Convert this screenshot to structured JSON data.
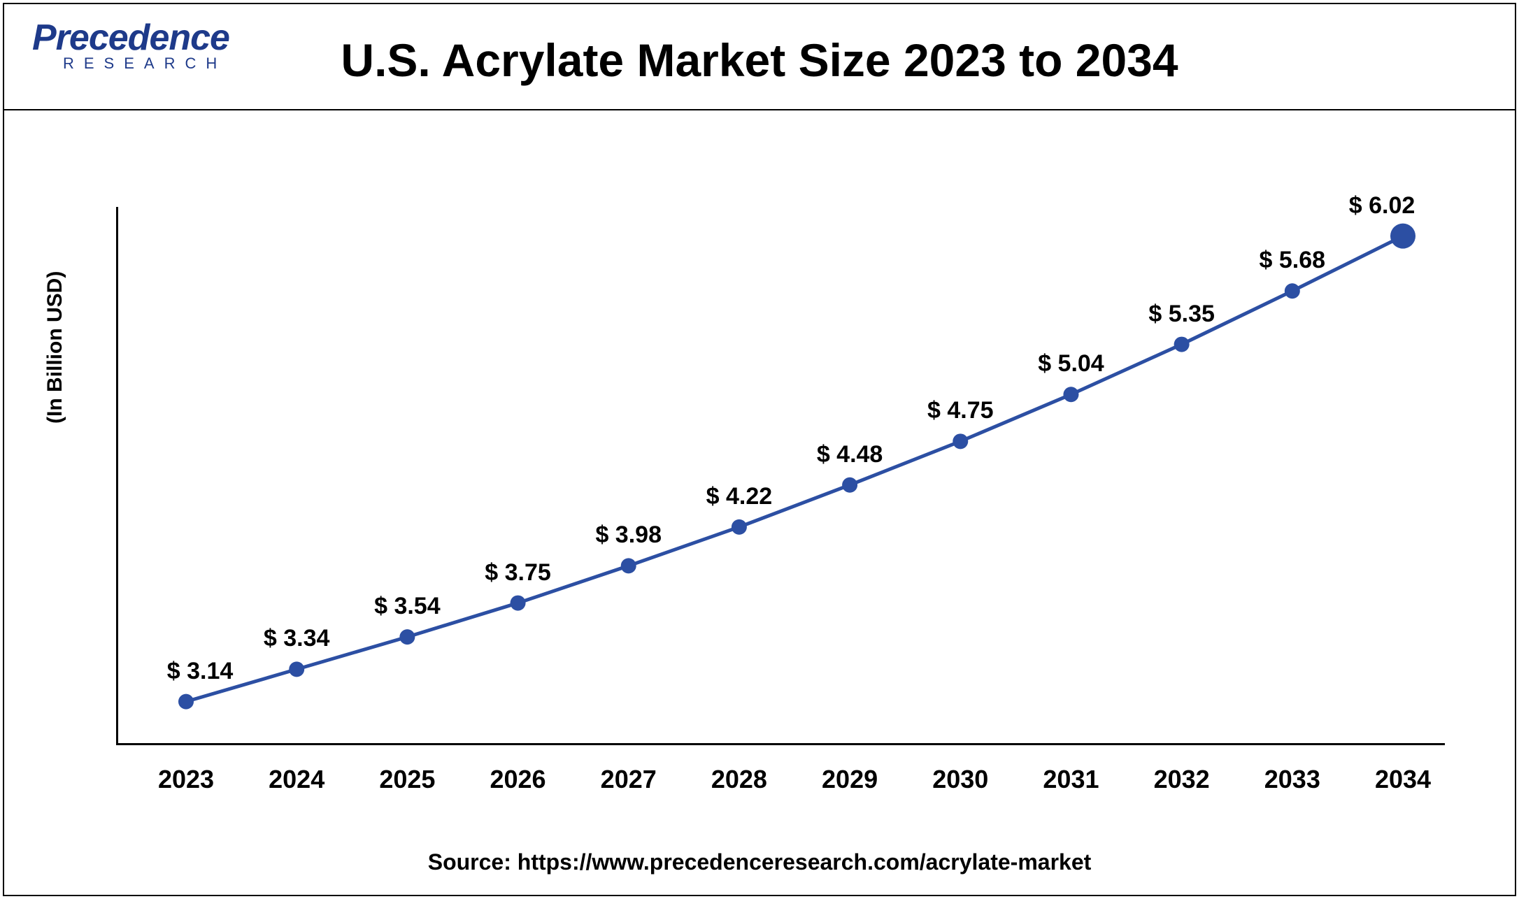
{
  "header": {
    "logo_main": "Precedence",
    "logo_sub": "RESEARCH",
    "title": "U.S. Acrylate Market Size 2023 to 2034"
  },
  "chart": {
    "type": "line",
    "y_axis_label": "(In Billion USD)",
    "line_color": "#2c4fa3",
    "line_width": 5,
    "marker_color": "#2c4fa3",
    "marker_radius": 11,
    "last_marker_radius": 18,
    "axis_color": "#000000",
    "background_color": "#ffffff",
    "label_fontsize": 34,
    "tick_fontsize": 36,
    "ylim": [
      3.0,
      6.2
    ],
    "x_categories": [
      "2023",
      "2024",
      "2025",
      "2026",
      "2027",
      "2028",
      "2029",
      "2030",
      "2031",
      "2032",
      "2033",
      "2034"
    ],
    "values": [
      3.14,
      3.34,
      3.54,
      3.75,
      3.98,
      4.22,
      4.48,
      4.75,
      5.04,
      5.35,
      5.68,
      6.02
    ],
    "data_labels": [
      "$ 3.14",
      "$  3.34",
      "$ 3.54",
      "$ 3.75",
      "$ 3.98",
      "$ 4.22",
      "$ 4.48",
      "$ 4.75",
      "$ 5.04",
      "$ 5.35",
      "$ 5.68",
      "$ 6.02"
    ]
  },
  "footer": {
    "source": "Source:  https://www.precedenceresearch.com/acrylate-market"
  }
}
